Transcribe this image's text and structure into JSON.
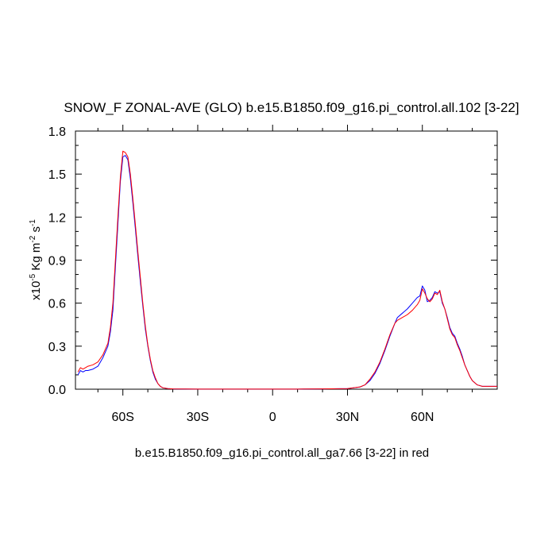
{
  "chart_data": {
    "type": "line",
    "title": "SNOW_F ZONAL-AVE (GLO) b.e15.B1850.f09_g16.pi_control.all.102 [3-22]",
    "ylabel": {
      "prefix": "x10",
      "exp1": "-5",
      "mid": " Kg m",
      "exp2": "-2",
      "mid2": " s",
      "exp3": "-1"
    },
    "caption": "b.e15.B1850.f09_g16.pi_control.all_ga7.66 [3-22] in red",
    "xlim": [
      -79,
      90
    ],
    "ylim": [
      0,
      1.8
    ],
    "xticks": [
      {
        "value": -60,
        "label": "60S"
      },
      {
        "value": -30,
        "label": "30S"
      },
      {
        "value": 0,
        "label": "0"
      },
      {
        "value": 30,
        "label": "30N"
      },
      {
        "value": 60,
        "label": "60N"
      }
    ],
    "yticks": [
      {
        "value": 0.0,
        "label": "0.0"
      },
      {
        "value": 0.3,
        "label": "0.3"
      },
      {
        "value": 0.6,
        "label": "0.6"
      },
      {
        "value": 0.9,
        "label": "0.9"
      },
      {
        "value": 1.2,
        "label": "1.2"
      },
      {
        "value": 1.5,
        "label": "1.5"
      },
      {
        "value": 1.8,
        "label": "1.8"
      }
    ],
    "series": [
      {
        "color": "#0000ff",
        "x": [
          -78,
          -77,
          -76,
          -75,
          -74,
          -72,
          -70,
          -68,
          -66,
          -65,
          -64,
          -63,
          -62,
          -61,
          -60,
          -59,
          -58,
          -57,
          -56,
          -55,
          -54,
          -53,
          -52,
          -51,
          -50,
          -49,
          -48,
          -47,
          -46,
          -45,
          -44,
          -42,
          -40,
          -30,
          -20,
          -10,
          0,
          10,
          20,
          30,
          35,
          37,
          39,
          41,
          43,
          45,
          47,
          49,
          50,
          52,
          54,
          56,
          57,
          58,
          59,
          60,
          61,
          62,
          63,
          64,
          65,
          66,
          67,
          68,
          69,
          70,
          71,
          72,
          73,
          74,
          75,
          76,
          77,
          78,
          79,
          80,
          82,
          84,
          86,
          90
        ],
        "y": [
          0.1,
          0.13,
          0.12,
          0.13,
          0.13,
          0.14,
          0.16,
          0.22,
          0.3,
          0.4,
          0.55,
          0.85,
          1.15,
          1.45,
          1.62,
          1.63,
          1.6,
          1.47,
          1.3,
          1.12,
          0.93,
          0.75,
          0.58,
          0.42,
          0.3,
          0.2,
          0.12,
          0.07,
          0.04,
          0.02,
          0.01,
          0.004,
          0.002,
          0.001,
          0.001,
          0.001,
          0.001,
          0.001,
          0.002,
          0.004,
          0.015,
          0.03,
          0.06,
          0.11,
          0.18,
          0.27,
          0.37,
          0.46,
          0.5,
          0.53,
          0.56,
          0.6,
          0.62,
          0.64,
          0.65,
          0.72,
          0.69,
          0.61,
          0.62,
          0.64,
          0.68,
          0.67,
          0.68,
          0.6,
          0.56,
          0.5,
          0.43,
          0.39,
          0.37,
          0.32,
          0.28,
          0.23,
          0.17,
          0.13,
          0.09,
          0.06,
          0.03,
          0.02,
          0.02,
          0.02
        ]
      },
      {
        "color": "#ff0000",
        "x": [
          -78,
          -77,
          -76,
          -75,
          -74,
          -72,
          -70,
          -68,
          -66,
          -65,
          -64,
          -63,
          -62,
          -61,
          -60,
          -59,
          -58,
          -57,
          -56,
          -55,
          -54,
          -53,
          -52,
          -51,
          -50,
          -49,
          -48,
          -47,
          -46,
          -45,
          -44,
          -42,
          -40,
          -30,
          -20,
          -10,
          0,
          10,
          20,
          30,
          35,
          37,
          39,
          41,
          43,
          45,
          47,
          49,
          50,
          52,
          54,
          56,
          57,
          58,
          59,
          60,
          61,
          62,
          63,
          64,
          65,
          66,
          67,
          68,
          69,
          70,
          71,
          72,
          73,
          74,
          75,
          76,
          77,
          78,
          79,
          80,
          82,
          84,
          86,
          90
        ],
        "y": [
          0.12,
          0.15,
          0.14,
          0.15,
          0.16,
          0.17,
          0.19,
          0.24,
          0.32,
          0.43,
          0.6,
          0.9,
          1.2,
          1.48,
          1.66,
          1.65,
          1.62,
          1.5,
          1.33,
          1.15,
          0.96,
          0.78,
          0.6,
          0.44,
          0.31,
          0.21,
          0.13,
          0.08,
          0.04,
          0.02,
          0.01,
          0.004,
          0.002,
          0.001,
          0.001,
          0.001,
          0.001,
          0.001,
          0.002,
          0.004,
          0.016,
          0.03,
          0.07,
          0.12,
          0.19,
          0.28,
          0.38,
          0.46,
          0.48,
          0.5,
          0.52,
          0.55,
          0.57,
          0.59,
          0.62,
          0.7,
          0.67,
          0.63,
          0.61,
          0.63,
          0.67,
          0.66,
          0.69,
          0.61,
          0.56,
          0.49,
          0.42,
          0.38,
          0.36,
          0.31,
          0.27,
          0.22,
          0.17,
          0.13,
          0.09,
          0.06,
          0.03,
          0.02,
          0.02,
          0.02
        ]
      }
    ],
    "grid": false
  }
}
